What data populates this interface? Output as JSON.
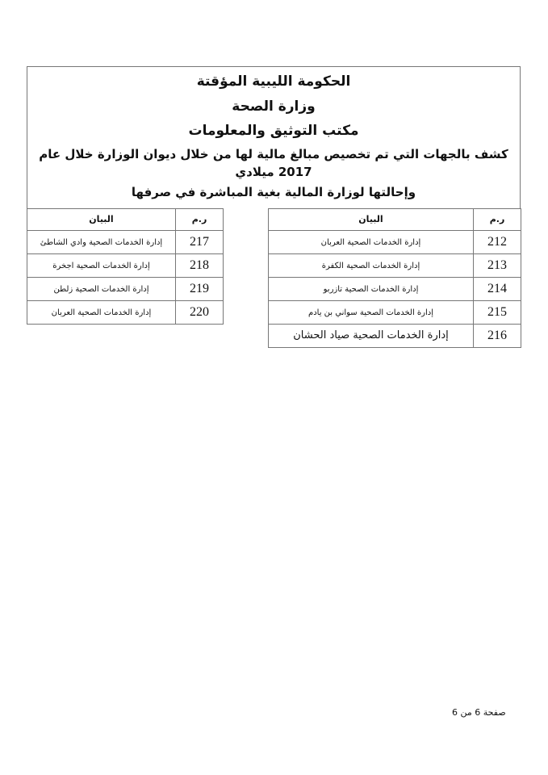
{
  "header": {
    "line1": "الحكومة الليبية المؤقتة",
    "line2": "وزارة الصحة",
    "line3": "مكتب التوثيق والمعلومات",
    "line4": "كشف بالجهات التي تم تخصيص مبالغ مالية لها من خلال ديوان الوزارة خلال عام 2017 ميلادي",
    "line5": "وإحالتها لوزارة المالية بغية المباشرة في صرفها"
  },
  "tables": {
    "columns": {
      "no": "ر.م",
      "desc": "البيان"
    },
    "right_rows": [
      {
        "no": "212",
        "desc": "إدارة الخدمات الصحية العربان"
      },
      {
        "no": "213",
        "desc": "إدارة الخدمات الصحية الكفرة"
      },
      {
        "no": "214",
        "desc": "إدارة الخدمات الصحية تازربو"
      },
      {
        "no": "215",
        "desc": "إدارة الخدمات الصحية سواني بن يادم"
      },
      {
        "no": "216",
        "desc": "إدارة الخدمات الصحية صياد الحشان"
      }
    ],
    "left_rows": [
      {
        "no": "217",
        "desc": "إدارة الخدمات الصحية وادي الشاطئ"
      },
      {
        "no": "218",
        "desc": "إدارة الخدمات الصحية اجخرة"
      },
      {
        "no": "219",
        "desc": "إدارة الخدمات الصحية زلطن"
      },
      {
        "no": "220",
        "desc": "إدارة الخدمات الصحية العربان"
      }
    ]
  },
  "footer": {
    "page": "صفحة 6 من 6"
  }
}
